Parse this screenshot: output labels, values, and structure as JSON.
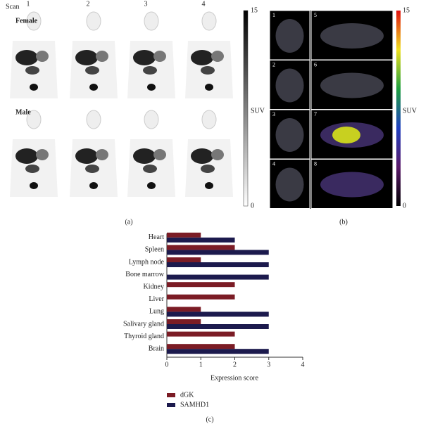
{
  "panel_a": {
    "scan_label": "Scan",
    "scan_numbers": [
      "1",
      "2",
      "3",
      "4"
    ],
    "rows": [
      "Female",
      "Male"
    ],
    "colorbar": {
      "label": "SUV",
      "ticks": [
        "15",
        "0"
      ]
    },
    "caption": "(a)"
  },
  "panel_b": {
    "image_numbers": [
      "1",
      "2",
      "3",
      "4",
      "5",
      "6",
      "7",
      "8"
    ],
    "colorbar": {
      "label": "SUV",
      "ticks": [
        "15",
        "0"
      ]
    },
    "caption": "(b)"
  },
  "chart_data": {
    "type": "bar",
    "orientation": "horizontal",
    "categories": [
      "Heart",
      "Spleen",
      "Lymph node",
      "Bone marrow",
      "Kidney",
      "Liver",
      "Lung",
      "Salivary gland",
      "Thyroid gland",
      "Brain"
    ],
    "series": [
      {
        "name": "dGK",
        "color": "#7b1c25",
        "values": [
          1,
          2,
          1,
          0,
          2,
          2,
          1,
          1,
          2,
          2
        ]
      },
      {
        "name": "SAMHD1",
        "color": "#1c1a4d",
        "values": [
          2,
          3,
          3,
          3,
          0,
          0,
          3,
          3,
          0,
          3
        ]
      }
    ],
    "xlim": [
      0,
      4
    ],
    "xticks": [
      0,
      1,
      2,
      3,
      4
    ],
    "xlabel": "Expression score",
    "caption": "(c)"
  }
}
